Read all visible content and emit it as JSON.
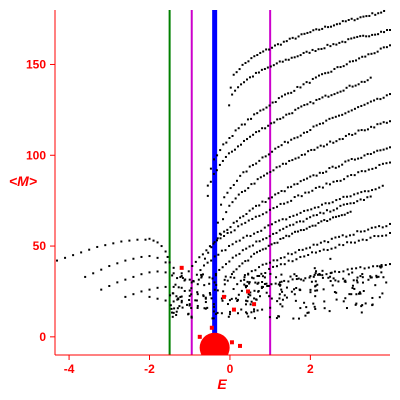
{
  "chart_data": {
    "type": "scatter",
    "title": "",
    "xlabel": "E",
    "ylabel": "<M>",
    "xlim": [
      -4.35,
      3.98
    ],
    "ylim": [
      -10,
      180
    ],
    "x_ticks": [
      -4,
      -2,
      0,
      2
    ],
    "x_tick_labels": [
      "-4",
      "-2",
      "0",
      "2"
    ],
    "y_ticks": [
      0,
      50,
      100,
      150
    ],
    "y_tick_labels": [
      "0",
      "50",
      "100",
      "150"
    ],
    "grid": false,
    "legend": "none",
    "colors": {
      "axes": "#ff0000",
      "points": "#000000",
      "highlight": "#ff0000",
      "line_green": "#008000",
      "line_magenta": "#cc00cc",
      "line_blue": "#0000ff"
    },
    "vertical_lines": [
      {
        "x": -1.5,
        "color": "#008000",
        "width": "thin"
      },
      {
        "x": -0.95,
        "color": "#cc00cc",
        "width": "thin"
      },
      {
        "x": -0.38,
        "color": "#0000ff",
        "width": "thick"
      },
      {
        "x": 1.0,
        "color": "#cc00cc",
        "width": "thin"
      }
    ],
    "bands": [
      {
        "x0": 0.02,
        "x1": 3.98,
        "y0": 138,
        "y1": 180,
        "n": 55
      },
      {
        "x0": -0.02,
        "x1": 3.98,
        "y0": 128,
        "y1": 169,
        "n": 55
      },
      {
        "x0": -0.55,
        "x1": 3.98,
        "y0": 83,
        "y1": 160,
        "n": 60
      },
      {
        "x0": -0.55,
        "x1": 3.5,
        "y0": 77,
        "y1": 142,
        "n": 55
      },
      {
        "x0": -0.3,
        "x1": 3.98,
        "y0": 63,
        "y1": 133,
        "n": 55
      },
      {
        "x0": -0.25,
        "x1": 3.98,
        "y0": 57,
        "y1": 119,
        "n": 55
      },
      {
        "x0": -0.7,
        "x1": 3.98,
        "y0": 33,
        "y1": 105,
        "n": 60
      },
      {
        "x0": -1.2,
        "x1": 3.98,
        "y0": 22,
        "y1": 96,
        "n": 60
      },
      {
        "x0": -1.0,
        "x1": 3.8,
        "y0": 22,
        "y1": 83,
        "n": 55
      },
      {
        "x0": -0.6,
        "x1": 3.5,
        "y0": 21,
        "y1": 77,
        "n": 50
      },
      {
        "x0": -0.2,
        "x1": 3.0,
        "y0": 21,
        "y1": 69,
        "n": 45
      },
      {
        "x0": 0.0,
        "x1": 3.98,
        "y0": 20,
        "y1": 62,
        "n": 45
      },
      {
        "x0": 0.2,
        "x1": 3.98,
        "y0": 20,
        "y1": 57,
        "n": 40
      },
      {
        "x0": 0.4,
        "x1": 3.98,
        "y0": 20,
        "y1": 40,
        "n": 35
      }
    ],
    "series": [
      {
        "color": "#000000",
        "x": [
          -4.3,
          -4.1,
          -3.9,
          -3.7,
          -3.5,
          -3.3,
          -3.1,
          -2.9,
          -2.7,
          -2.5,
          -2.3,
          -2.1,
          -2.0,
          -1.9,
          -1.8,
          -1.7,
          -1.6,
          -1.55,
          -1.5
        ],
        "y": [
          42,
          43.5,
          45,
          46.5,
          48,
          49.5,
          50.5,
          51.5,
          52.5,
          53,
          53.5,
          53.5,
          54,
          53,
          52,
          50,
          47,
          44,
          41
        ]
      },
      {
        "color": "#000000",
        "x": [
          -3.6,
          -3.4,
          -3.2,
          -3.0,
          -2.8,
          -2.6,
          -2.4,
          -2.2,
          -2.0,
          -1.8,
          -1.6,
          -1.4,
          -1.2
        ],
        "y": [
          33,
          35,
          37,
          39,
          40.5,
          42,
          43,
          44,
          44.5,
          43.5,
          41,
          38,
          35
        ]
      },
      {
        "color": "#000000",
        "x": [
          -3.2,
          -3.0,
          -2.8,
          -2.6,
          -2.4,
          -2.2,
          -2.0,
          -1.8,
          -1.6,
          -1.4,
          -1.2,
          -1.0,
          -0.8
        ],
        "y": [
          26,
          28,
          30,
          31.5,
          33,
          34.5,
          35.5,
          36,
          35.5,
          35,
          33.5,
          31.5,
          29
        ]
      },
      {
        "color": "#000000",
        "x": [
          -2.6,
          -2.4,
          -2.2,
          -2.0,
          -1.8,
          -1.6,
          -1.4,
          -1.2,
          -1.0,
          -0.8,
          -0.6,
          -0.4
        ],
        "y": [
          22,
          23.5,
          25,
          26,
          27,
          27.5,
          27.5,
          27,
          25.5,
          23.5,
          21,
          18
        ]
      },
      {
        "color": "#000000",
        "x": [
          -2.0,
          -1.8,
          -1.6,
          -1.4,
          -1.2,
          -1.0,
          -0.8,
          -0.6,
          -0.4,
          -0.2,
          0.0,
          0.2,
          0.4,
          0.6,
          0.8,
          1.0
        ],
        "y": [
          22,
          21,
          20,
          19.5,
          19,
          18,
          17,
          15.5,
          14,
          13,
          12.5,
          13,
          13.5,
          14,
          15,
          16
        ]
      },
      {
        "color": "#ff0000",
        "x": [
          -0.38,
          -0.6,
          -0.25,
          -0.75,
          0.25,
          0.05,
          0.1,
          -0.45,
          0.45,
          0.6,
          -1.2,
          -0.15
        ],
        "y": [
          -6,
          -5,
          -8,
          0,
          -5,
          -3,
          15,
          5,
          25,
          18,
          38,
          22
        ]
      }
    ],
    "highlight_disk": {
      "x": -0.38,
      "y": -6
    }
  }
}
